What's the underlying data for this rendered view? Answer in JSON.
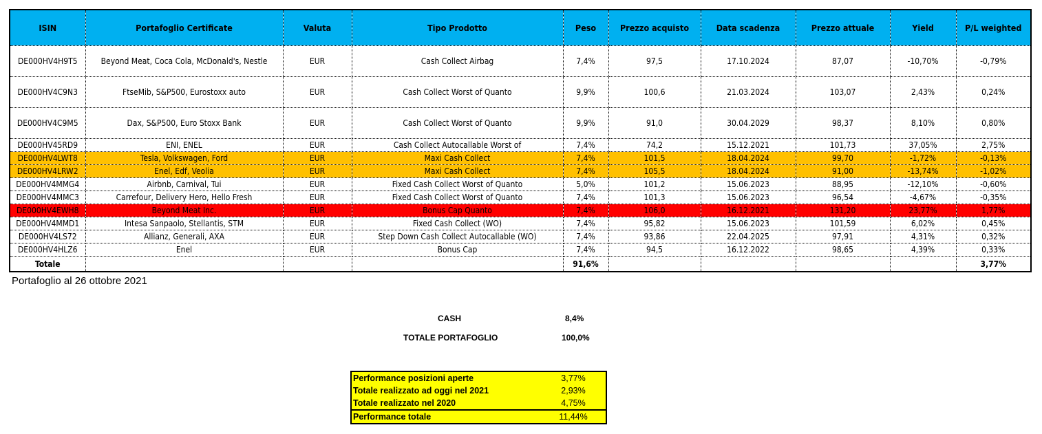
{
  "headers": [
    "ISIN",
    "Portafoglio Certificate",
    "Valuta",
    "Tipo Prodotto",
    "Peso",
    "Prezzo acquisto",
    "Data scadenza",
    "Prezzo attuale",
    "Yield",
    "P/L weighted"
  ],
  "rows": [
    {
      "style": "tall",
      "cells": [
        "DE000HV4H9T5",
        "Beyond Meat, Coca Cola, McDonald's, Nestle",
        "EUR",
        "Cash Collect Airbag",
        "7,4%",
        "97,5",
        "17.10.2024",
        "87,07",
        "-10,70%",
        "-0,79%"
      ]
    },
    {
      "style": "tall",
      "cells": [
        "DE000HV4C9N3",
        "FtseMib, S&P500, Eurostoxx auto",
        "EUR",
        "Cash Collect Worst of Quanto",
        "9,9%",
        "100,6",
        "21.03.2024",
        "103,07",
        "2,43%",
        "0,24%"
      ]
    },
    {
      "style": "tall",
      "cells": [
        "DE000HV4C9M5",
        "Dax, S&P500, Euro Stoxx Bank",
        "EUR",
        "Cash Collect Worst of Quanto",
        "9,9%",
        "91,0",
        "30.04.2029",
        "98,37",
        "8,10%",
        "0,80%"
      ]
    },
    {
      "style": "short",
      "cells": [
        "DE000HV45RD9",
        "ENI, ENEL",
        "EUR",
        "Cash Collect Autocallable Worst of",
        "7,4%",
        "74,2",
        "15.12.2021",
        "101,73",
        "37,05%",
        "2,75%"
      ]
    },
    {
      "style": "short orange",
      "cells": [
        "DE000HV4LWT8",
        "Tesla, Volkswagen, Ford",
        "EUR",
        "Maxi Cash Collect",
        "7,4%",
        "101,5",
        "18.04.2024",
        "99,70",
        "-1,72%",
        "-0,13%"
      ]
    },
    {
      "style": "short orange",
      "cells": [
        "DE000HV4LRW2",
        "Enel, Edf, Veolia",
        "EUR",
        "Maxi Cash Collect",
        "7,4%",
        "105,5",
        "18.04.2024",
        "91,00",
        "-13,74%",
        "-1,02%"
      ]
    },
    {
      "style": "short",
      "cells": [
        "DE000HV4MMG4",
        "Airbnb, Carnival, Tui",
        "EUR",
        "Fixed Cash Collect Worst of Quanto",
        "5,0%",
        "101,2",
        "15.06.2023",
        "88,95",
        "-12,10%",
        "-0,60%"
      ]
    },
    {
      "style": "short",
      "cells": [
        "DE000HV4MMC3",
        "Carrefour, Delivery Hero, Hello Fresh",
        "EUR",
        "Fixed Cash Collect Worst of Quanto",
        "7,4%",
        "101,3",
        "15.06.2023",
        "96,54",
        "-4,67%",
        "-0,35%"
      ]
    },
    {
      "style": "short red",
      "cells": [
        "DE000HV4EWH8",
        "Beyond Meat Inc.",
        "EUR",
        "Bonus Cap Quanto",
        "7,4%",
        "106,0",
        "16.12.2021",
        "131,20",
        "23,77%",
        "1,77%"
      ]
    },
    {
      "style": "short",
      "cells": [
        "DE000HV4MMD1",
        "Intesa Sanpaolo, Stellantis, STM",
        "EUR",
        "Fixed Cash Collect (WO)",
        "7,4%",
        "95,82",
        "15.06.2023",
        "101,59",
        "6,02%",
        "0,45%"
      ]
    },
    {
      "style": "short",
      "cells": [
        "DE000HV4LS72",
        "Allianz, Generali, AXA",
        "EUR",
        "Step Down Cash Collect Autocallable (WO)",
        "7,4%",
        "93,86",
        "22.04.2025",
        "97,91",
        "4,31%",
        "0,32%"
      ]
    },
    {
      "style": "short",
      "cells": [
        "DE000HV4HLZ6",
        "Enel",
        "EUR",
        "Bonus Cap",
        "7,4%",
        "94,5",
        "16.12.2022",
        "98,65",
        "4,39%",
        "0,33%"
      ]
    },
    {
      "style": "tot",
      "cells": [
        "Totale",
        "",
        "",
        "",
        "91,6%",
        "",
        "",
        "",
        "",
        "3,77%"
      ]
    }
  ],
  "note": "Portafoglio al 26 ottobre 2021",
  "cash_label": "CASH",
  "cash_value": "8,4%",
  "total_label": "TOTALE PORTAFOGLIO",
  "total_value": "100,0%",
  "performance": [
    {
      "label": "Performance posizioni aperte",
      "value": "3,77%"
    },
    {
      "label": "Totale realizzato ad oggi nel 2021",
      "value": "2,93%"
    },
    {
      "label": "Totale realizzato nel 2020",
      "value": "4,75%"
    },
    {
      "label": "Performance totale",
      "value": "11,44%"
    }
  ]
}
